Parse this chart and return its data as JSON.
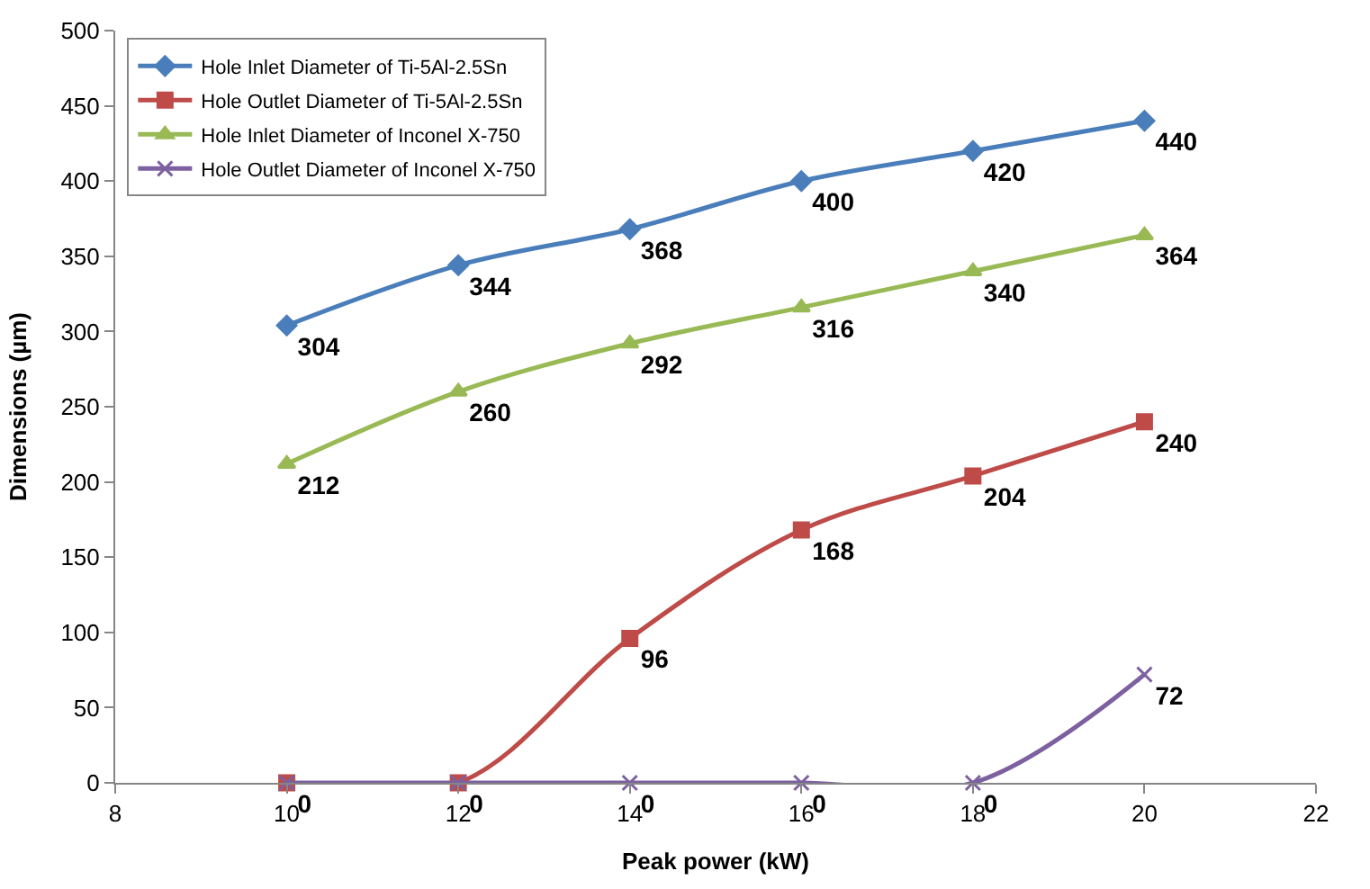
{
  "chart_data": {
    "type": "line",
    "xlabel": "Peak power (kW)",
    "ylabel": "Dimensions (µm)",
    "x": [
      10,
      12,
      14,
      16,
      18,
      20
    ],
    "xlim": [
      8,
      22
    ],
    "xticks": [
      8,
      10,
      12,
      14,
      16,
      18,
      20,
      22
    ],
    "ylim": [
      0,
      500
    ],
    "yticks": [
      0,
      50,
      100,
      150,
      200,
      250,
      300,
      350,
      400,
      450,
      500
    ],
    "grid": false,
    "legend": "top left",
    "series": [
      {
        "name": "Hole Inlet Diameter of Ti-5Al-2.5Sn",
        "color": "#4a7ebb",
        "marker": "diamond",
        "values": [
          304,
          344,
          368,
          400,
          420,
          440
        ],
        "value_labels": [
          "304",
          "344",
          "368",
          "400",
          "420",
          "440"
        ]
      },
      {
        "name": "Hole Outlet Diameter of Ti-5Al-2.5Sn",
        "color": "#be4b48",
        "marker": "square",
        "values": [
          0,
          0,
          96,
          168,
          204,
          240
        ],
        "value_labels": [
          "0",
          "0",
          "96",
          "168",
          "204",
          "240"
        ]
      },
      {
        "name": "Hole Inlet Diameter of Inconel X-750",
        "color": "#98b954",
        "marker": "triangle",
        "values": [
          212,
          260,
          292,
          316,
          340,
          364
        ],
        "value_labels": [
          "212",
          "260",
          "292",
          "316",
          "340",
          "364"
        ]
      },
      {
        "name": "Hole Outlet Diameter of Inconel X-750",
        "color": "#7d60a0",
        "marker": "cross",
        "values": [
          0,
          0,
          0,
          0,
          0,
          72
        ],
        "value_labels": [
          null,
          null,
          "0",
          "0",
          "0",
          "72"
        ]
      }
    ]
  }
}
